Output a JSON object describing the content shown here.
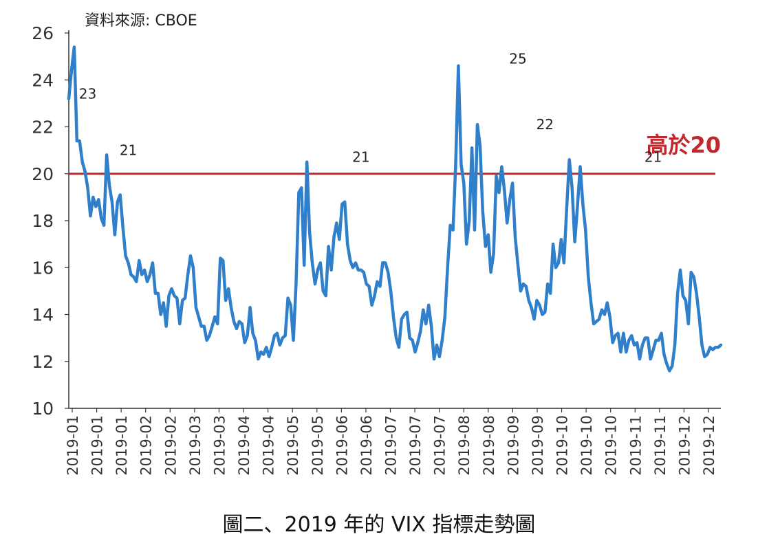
{
  "source_note": "資料來源: CBOE",
  "caption": "圖二、2019 年的 VIX 指標走勢圖",
  "chart_data": {
    "type": "line",
    "title": "",
    "xlabel": "",
    "ylabel": "",
    "ylim": [
      10,
      26
    ],
    "yticks": [
      10,
      12,
      14,
      16,
      18,
      20,
      22,
      24,
      26
    ],
    "grid": false,
    "x_tick_labels": [
      "2019-01",
      "2019-01",
      "2019-01",
      "2019-02",
      "2019-02",
      "2019-03",
      "2019-03",
      "2019-04",
      "2019-04",
      "2019-05",
      "2019-05",
      "2019-06",
      "2019-06",
      "2019-07",
      "2019-07",
      "2019-07",
      "2019-08",
      "2019-08",
      "2019-09",
      "2019-09",
      "2019-10",
      "2019-10",
      "2019-10",
      "2019-11",
      "2019-11",
      "2019-12",
      "2019-12"
    ],
    "series": [
      {
        "color": "#2F7FCB",
        "values": [
          23.2,
          24.4,
          25.4,
          21.4,
          21.4,
          20.5,
          20.1,
          19.4,
          18.2,
          19.0,
          18.6,
          18.9,
          18.1,
          17.8,
          20.8,
          19.5,
          18.8,
          17.4,
          18.8,
          19.1,
          17.7,
          16.5,
          16.2,
          15.7,
          15.6,
          15.4,
          16.3,
          15.7,
          15.9,
          15.4,
          15.7,
          16.2,
          14.9,
          14.9,
          14.0,
          14.5,
          13.5,
          14.8,
          15.1,
          14.8,
          14.7,
          13.6,
          14.6,
          14.7,
          15.7,
          16.5,
          16.0,
          14.3,
          13.9,
          13.5,
          13.5,
          12.9,
          13.1,
          13.5,
          13.9,
          13.6,
          16.4,
          16.3,
          14.6,
          15.1,
          14.3,
          13.7,
          13.4,
          13.7,
          13.6,
          12.8,
          13.1,
          14.3,
          13.2,
          12.9,
          12.1,
          12.4,
          12.3,
          12.6,
          12.2,
          12.6,
          13.1,
          13.2,
          12.7,
          13.0,
          13.1,
          14.7,
          14.4,
          12.9,
          15.3,
          19.2,
          19.4,
          16.1,
          20.5,
          17.5,
          16.2,
          15.3,
          15.9,
          16.2,
          15.0,
          14.8,
          16.9,
          15.9,
          17.3,
          17.9,
          17.2,
          18.7,
          18.8,
          17.0,
          16.3,
          16.0,
          16.2,
          15.9,
          15.9,
          15.8,
          15.3,
          15.2,
          14.4,
          14.8,
          15.4,
          15.2,
          16.2,
          16.2,
          15.8,
          15.0,
          13.9,
          13.0,
          12.6,
          13.8,
          14.0,
          14.1,
          13.0,
          12.9,
          12.4,
          12.8,
          13.3,
          14.2,
          13.6,
          14.4,
          13.5,
          12.1,
          12.7,
          12.2,
          12.9,
          13.9,
          16.0,
          17.8,
          17.6,
          20.4,
          24.6,
          20.4,
          19.6,
          17.0,
          18.0,
          21.1,
          17.6,
          22.1,
          21.2,
          18.4,
          16.9,
          17.4,
          15.8,
          16.6,
          19.9,
          19.2,
          20.3,
          19.3,
          17.9,
          18.9,
          19.6,
          17.3,
          16.1,
          15.0,
          15.3,
          15.2,
          14.6,
          14.3,
          13.8,
          14.6,
          14.4,
          14.0,
          14.1,
          15.3,
          14.9,
          17.0,
          16.0,
          16.2,
          17.2,
          16.2,
          18.5,
          20.6,
          19.4,
          17.1,
          18.6,
          20.3,
          18.7,
          17.6,
          15.6,
          14.5,
          13.6,
          13.7,
          13.8,
          14.2,
          14.0,
          14.5,
          13.9,
          12.8,
          13.1,
          13.2,
          12.4,
          13.2,
          12.4,
          12.9,
          13.1,
          12.7,
          12.8,
          12.1,
          12.7,
          13.0,
          13.0,
          12.1,
          12.5,
          12.9,
          12.9,
          13.2,
          12.3,
          11.9,
          11.6,
          11.8,
          12.7,
          14.9,
          15.9,
          14.8,
          14.6,
          13.6,
          15.8,
          15.6,
          14.9,
          13.9,
          12.7,
          12.2,
          12.3,
          12.6,
          12.5,
          12.6,
          12.6,
          12.7
        ]
      }
    ],
    "threshold": {
      "value": 20,
      "label": "高於20",
      "color": "#C0282D"
    },
    "annotations": [
      {
        "text": "23",
        "index": 7,
        "value": 23.2
      },
      {
        "text": "21",
        "index": 22,
        "value": 20.8
      },
      {
        "text": "21",
        "index": 108,
        "value": 20.5
      },
      {
        "text": "25",
        "index": 166,
        "value": 24.7
      },
      {
        "text": "22",
        "index": 176,
        "value": 21.9
      },
      {
        "text": "21",
        "index": 216,
        "value": 20.5
      }
    ]
  }
}
